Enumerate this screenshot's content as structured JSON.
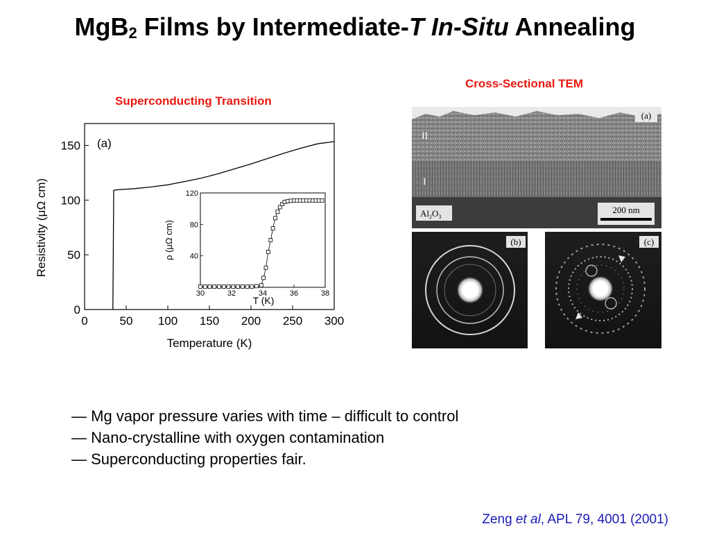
{
  "title": {
    "prefix": "MgB",
    "subscript": "2",
    "middle": " Films by Intermediate-",
    "italic1": "T",
    "space": " ",
    "italic2": "In-Situ",
    "suffix": " Annealing"
  },
  "left_caption": "Superconducting Transition",
  "right_caption": "Cross-Sectional TEM",
  "chart_data": [
    {
      "type": "line",
      "panel_label": "(a)",
      "xlabel": "Temperature (K)",
      "ylabel": "Resistivity (μΩ cm)",
      "xlim": [
        0,
        300
      ],
      "ylim": [
        0,
        170
      ],
      "xticks": [
        0,
        50,
        100,
        150,
        200,
        250,
        300
      ],
      "yticks": [
        0,
        50,
        100,
        150
      ],
      "series": [
        {
          "x": [
            34,
            35,
            40,
            60,
            80,
            100,
            120,
            140,
            160,
            180,
            200,
            220,
            240,
            260,
            280,
            300
          ],
          "y": [
            0,
            109,
            109.5,
            110.5,
            112,
            114,
            117,
            120,
            124,
            128.5,
            133,
            138,
            143,
            147.5,
            151.5,
            153.5
          ]
        }
      ]
    },
    {
      "type": "scatter",
      "xlabel": "T (K)",
      "ylabel": "ρ (μΩ cm)",
      "xlim": [
        30,
        38
      ],
      "ylim": [
        0,
        120
      ],
      "xticks": [
        30,
        32,
        34,
        36,
        38
      ],
      "yticks": [
        40,
        80,
        120
      ],
      "series": [
        {
          "x": [
            30,
            30.3,
            30.6,
            30.9,
            31.2,
            31.5,
            31.8,
            32.1,
            32.4,
            32.7,
            33.0,
            33.3,
            33.6,
            33.9,
            34.05,
            34.2,
            34.35,
            34.5,
            34.65,
            34.8,
            34.95,
            35.1,
            35.25,
            35.4,
            35.6,
            35.8,
            36.0,
            36.2,
            36.4,
            36.6,
            36.8,
            37.0,
            37.2,
            37.4,
            37.6,
            37.8
          ],
          "y": [
            1,
            1,
            1,
            1,
            1,
            1,
            1,
            1,
            1,
            1,
            1,
            1,
            1.5,
            2.5,
            12,
            25,
            45,
            60,
            75,
            88,
            96,
            102,
            106,
            108.5,
            109.5,
            110,
            110.5,
            110.5,
            110.5,
            110.5,
            110.5,
            110.5,
            110.5,
            110.5,
            110.5,
            110.5
          ]
        }
      ]
    }
  ],
  "tem": {
    "layer_II": "II",
    "layer_I": "I",
    "substrate_al": "Al",
    "substrate_2": "2",
    "substrate_o": "O",
    "substrate_3": "3",
    "scale": "200 nm",
    "panel_a": "(a)",
    "panel_b": "(b)",
    "panel_c": "(c)"
  },
  "bullets": [
    "— Mg vapor pressure varies with time – difficult to control",
    "— Nano-crystalline with oxygen contamination",
    "— Superconducting properties fair."
  ],
  "citation": {
    "author": "Zeng ",
    "etal": "et al",
    "ref": ", APL 79, 4001 (2001)"
  }
}
